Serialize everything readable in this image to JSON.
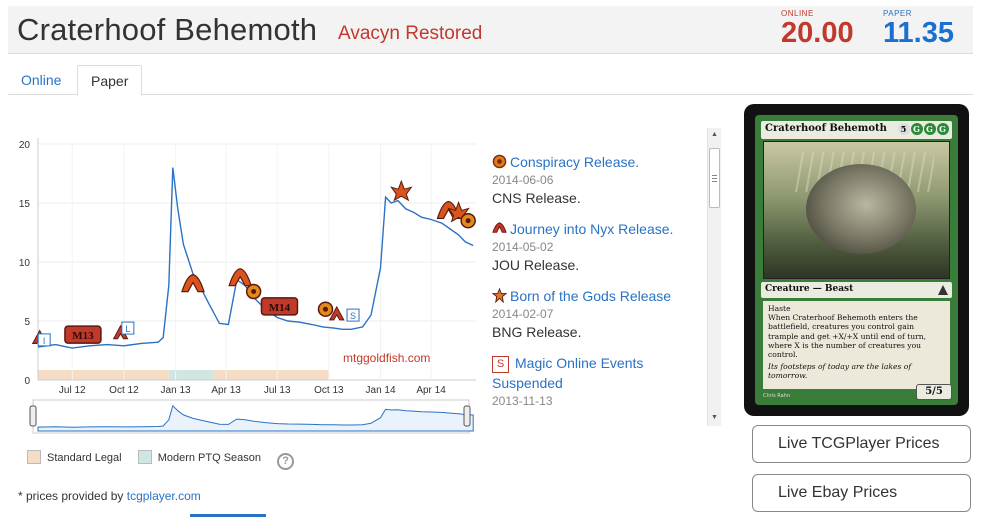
{
  "header": {
    "card_name": "Craterhoof Behemoth",
    "set_name": "Avacyn Restored",
    "online_label": "ONLINE",
    "online_price": "20.00",
    "paper_label": "PAPER",
    "paper_price": "11.35"
  },
  "tabs": [
    {
      "label": "Online",
      "active": false
    },
    {
      "label": "Paper",
      "active": true
    }
  ],
  "chart": {
    "watermark": "mtggoldfish.com",
    "legend": {
      "standard": "Standard Legal",
      "modern": "Modern PTQ Season",
      "help": "?"
    }
  },
  "chart_data": {
    "type": "line",
    "title": "",
    "xlabel": "",
    "ylabel": "",
    "ylim": [
      0,
      20
    ],
    "yticks": [
      "0",
      "5",
      "10",
      "15",
      "20"
    ],
    "xticks": [
      "Jul 12",
      "Oct 12",
      "Jan 13",
      "Apr 13",
      "Jul 13",
      "Oct 13",
      "Jan 14",
      "Apr 14"
    ],
    "grid": true,
    "series": [
      {
        "color": "#2a72c4",
        "x": [
          "2012-05-01",
          "2012-06-01",
          "2012-07-01",
          "2012-08-01",
          "2012-09-01",
          "2012-10-01",
          "2012-11-01",
          "2012-12-01",
          "2012-12-10",
          "2012-12-20",
          "2012-12-27",
          "2013-01-05",
          "2013-01-15",
          "2013-02-01",
          "2013-02-15",
          "2013-03-01",
          "2013-03-20",
          "2013-04-05",
          "2013-04-20",
          "2013-05-05",
          "2013-05-20",
          "2013-06-10",
          "2013-07-01",
          "2013-07-20",
          "2013-08-10",
          "2013-09-01",
          "2013-09-20",
          "2013-10-10",
          "2013-10-25",
          "2013-11-10",
          "2013-11-30",
          "2013-12-15",
          "2014-01-01",
          "2014-01-10",
          "2014-01-20",
          "2014-02-01",
          "2014-02-15",
          "2014-03-01",
          "2014-03-15",
          "2014-04-01",
          "2014-04-20",
          "2014-05-05",
          "2014-05-20",
          "2014-06-01",
          "2014-06-15"
        ],
        "y": [
          2.8,
          3.0,
          2.7,
          2.9,
          3.0,
          2.9,
          3.1,
          3.2,
          3.6,
          8.0,
          18.0,
          14.5,
          11.5,
          9.0,
          7.8,
          6.5,
          4.8,
          4.7,
          8.5,
          8.0,
          7.0,
          6.0,
          5.3,
          5.0,
          4.9,
          4.7,
          4.5,
          4.4,
          4.3,
          4.3,
          4.5,
          5.5,
          9.5,
          15.5,
          15.0,
          15.2,
          14.5,
          14.2,
          13.8,
          13.6,
          13.3,
          12.8,
          12.3,
          11.7,
          11.4
        ]
      }
    ],
    "shaded_bands": [
      {
        "label": "Standard Legal",
        "color": "#f5dcc4",
        "from": "2012-05-01",
        "to": "2012-12-20"
      },
      {
        "label": "Modern PTQ Season",
        "color": "#cfe6e3",
        "from": "2012-12-20",
        "to": "2013-03-10"
      },
      {
        "label": "Standard Legal",
        "color": "#f5dcc4",
        "from": "2013-03-10",
        "to": "2013-10-01"
      }
    ]
  },
  "events": [
    {
      "title": "Conspiracy Release.",
      "date": "2014-06-06",
      "desc": "CNS Release.",
      "icon": "conspiracy-icon"
    },
    {
      "title": "Journey into Nyx Release.",
      "date": "2014-05-02",
      "desc": "JOU Release.",
      "icon": "journey-into-nyx-icon"
    },
    {
      "title": "Born of the Gods Release",
      "date": "2014-02-07",
      "desc": "BNG Release.",
      "icon": "born-of-the-gods-icon"
    },
    {
      "title": "Magic Online Events Suspended",
      "date": "2013-11-13",
      "desc": "",
      "icon": "s-square-icon",
      "icon_glyph": "S"
    }
  ],
  "card": {
    "name": "Craterhoof Behemoth",
    "mana_generic": "5",
    "mana_green": [
      "G",
      "G",
      "G"
    ],
    "type_line": "Creature — Beast",
    "rules_1": "Haste",
    "rules_2": "When Craterhoof Behemoth enters the battlefield, creatures you control gain trample and get +X/+X until end of turn, where X is the number of creatures you control.",
    "flavor": "Its footsteps of today are the lakes of tomorrow.",
    "pt": "5/5",
    "artist": "Chris Rahn"
  },
  "buttons": {
    "tcg": "Live TCGPlayer Prices",
    "ebay": "Live Ebay Prices"
  },
  "footer": {
    "provided_prefix": "* prices provided by ",
    "provided_link": "tcgplayer.com"
  },
  "colors": {
    "online": "#c0392b",
    "paper": "#1a6fd1",
    "link": "#2a72c4"
  }
}
